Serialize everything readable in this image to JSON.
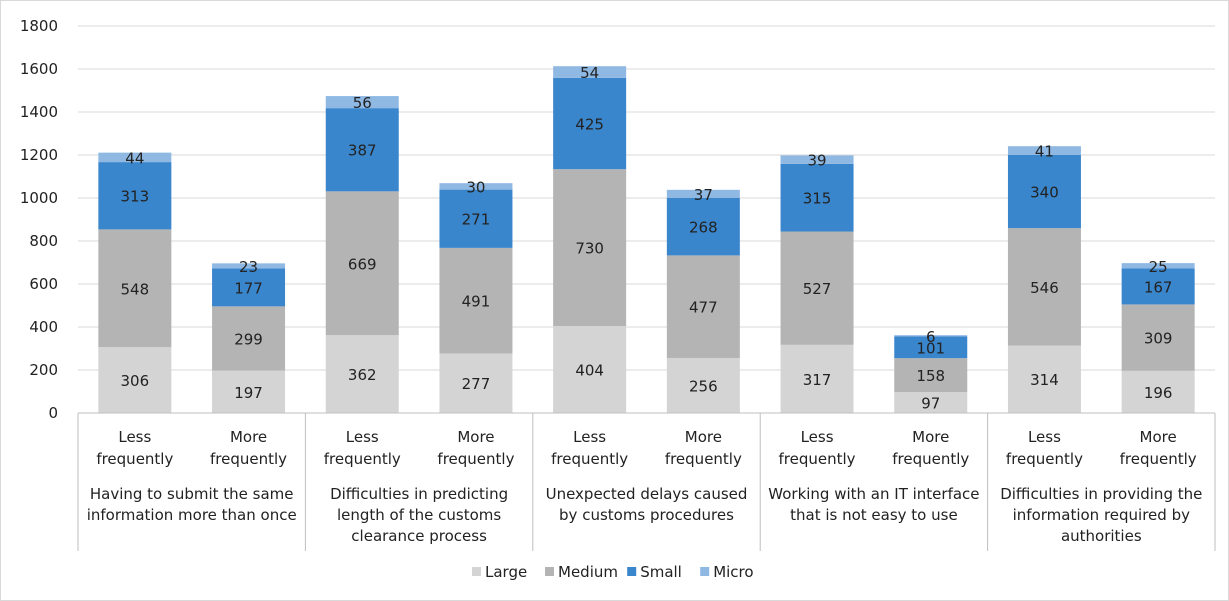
{
  "chart_data": {
    "type": "bar",
    "stacked": true,
    "ylim": [
      0,
      1800
    ],
    "yticks": [
      0,
      200,
      400,
      600,
      800,
      1000,
      1200,
      1400,
      1600,
      1800
    ],
    "grid": true,
    "legend_position": "bottom",
    "groups": [
      {
        "label_lines": [
          "Having to submit the same",
          "information more than once"
        ]
      },
      {
        "label_lines": [
          "Difficulties in predicting",
          "length of the customs",
          "clearance process"
        ]
      },
      {
        "label_lines": [
          "Unexpected delays caused",
          "by customs procedures"
        ]
      },
      {
        "label_lines": [
          "Working with an IT interface",
          "that is not easy to use"
        ]
      },
      {
        "label_lines": [
          "Difficulties in providing the",
          "information required by",
          "authorities"
        ]
      }
    ],
    "categories": [
      {
        "group": 0,
        "label_lines": [
          "Less",
          "frequently"
        ]
      },
      {
        "group": 0,
        "label_lines": [
          "More",
          "frequently"
        ]
      },
      {
        "group": 1,
        "label_lines": [
          "Less",
          "frequently"
        ]
      },
      {
        "group": 1,
        "label_lines": [
          "More",
          "frequently"
        ]
      },
      {
        "group": 2,
        "label_lines": [
          "Less",
          "frequently"
        ]
      },
      {
        "group": 2,
        "label_lines": [
          "More",
          "frequently"
        ]
      },
      {
        "group": 3,
        "label_lines": [
          "Less",
          "frequently"
        ]
      },
      {
        "group": 3,
        "label_lines": [
          "More",
          "frequently"
        ]
      },
      {
        "group": 4,
        "label_lines": [
          "Less",
          "frequently"
        ]
      },
      {
        "group": 4,
        "label_lines": [
          "More",
          "frequently"
        ]
      }
    ],
    "series": [
      {
        "name": "Large",
        "color": "#d4d4d4",
        "values": [
          306,
          197,
          362,
          277,
          404,
          256,
          317,
          97,
          314,
          196
        ]
      },
      {
        "name": "Medium",
        "color": "#b4b4b4",
        "values": [
          548,
          299,
          669,
          491,
          730,
          477,
          527,
          158,
          546,
          309
        ]
      },
      {
        "name": "Small",
        "color": "#3a86cc",
        "values": [
          313,
          177,
          387,
          271,
          425,
          268,
          315,
          101,
          340,
          167
        ]
      },
      {
        "name": "Micro",
        "color": "#8fb8e3",
        "values": [
          44,
          23,
          56,
          30,
          54,
          37,
          39,
          6,
          41,
          25
        ]
      }
    ]
  }
}
